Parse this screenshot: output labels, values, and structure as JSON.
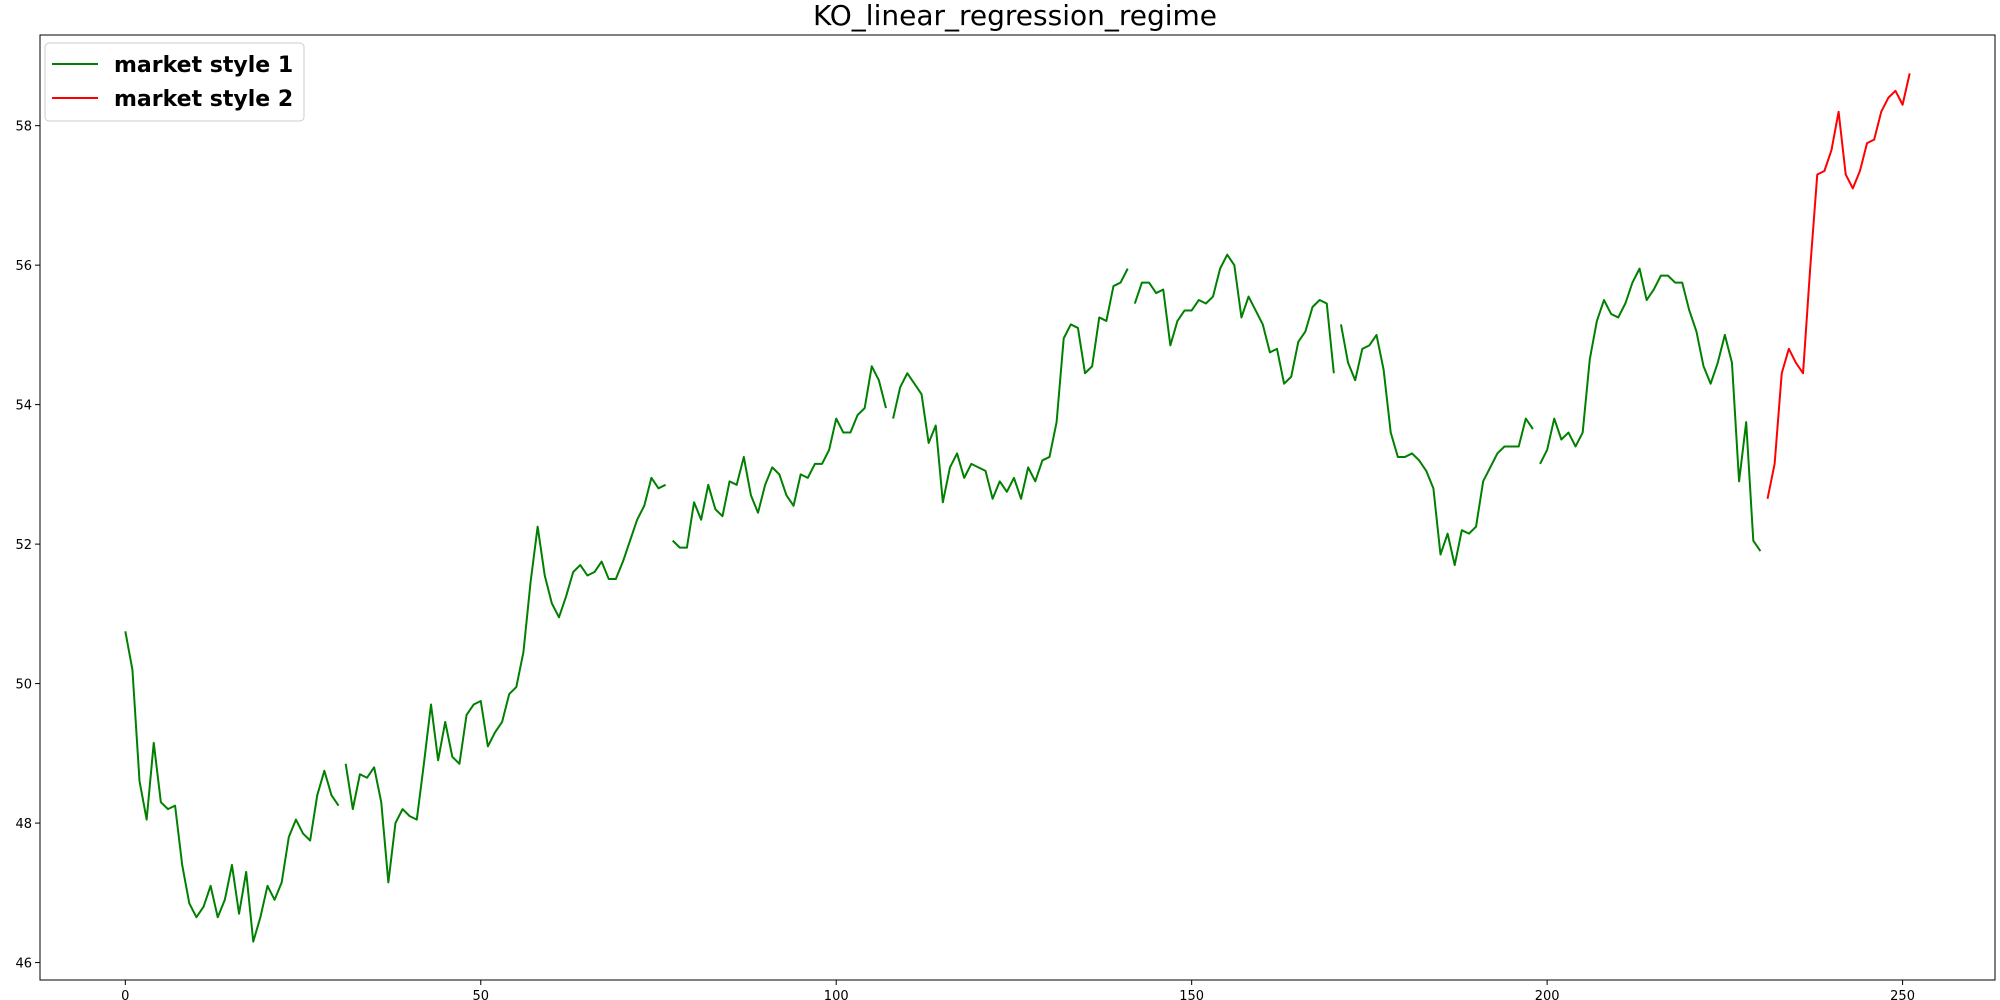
{
  "chart_data": {
    "type": "line",
    "title": "KO_linear_regression_regime",
    "xlabel": "",
    "ylabel": "",
    "xlim": [
      -12,
      263
    ],
    "ylim": [
      45.75,
      59.3
    ],
    "x_ticks": [
      0,
      50,
      100,
      150,
      200,
      250
    ],
    "y_ticks": [
      46,
      48,
      50,
      52,
      54,
      56,
      58
    ],
    "grid": false,
    "legend_position": "top-left",
    "colors": {
      "market style 1": "#008000",
      "market style 2": "#ff0000"
    },
    "series": [
      {
        "name": "market style 1",
        "color": "#008000",
        "segments": [
          [
            [
              0,
              50.75
            ],
            [
              1,
              50.2
            ],
            [
              2,
              48.6
            ],
            [
              3,
              48.05
            ],
            [
              4,
              49.15
            ],
            [
              5,
              48.3
            ],
            [
              6,
              48.2
            ],
            [
              7,
              48.25
            ],
            [
              8,
              47.4
            ],
            [
              9,
              46.85
            ],
            [
              10,
              46.65
            ],
            [
              11,
              46.8
            ],
            [
              12,
              47.1
            ],
            [
              13,
              46.65
            ],
            [
              14,
              46.9
            ],
            [
              15,
              47.4
            ],
            [
              16,
              46.7
            ],
            [
              17,
              47.3
            ],
            [
              18,
              46.3
            ],
            [
              19,
              46.65
            ],
            [
              20,
              47.1
            ],
            [
              21,
              46.9
            ],
            [
              22,
              47.15
            ],
            [
              23,
              47.8
            ],
            [
              24,
              48.05
            ],
            [
              25,
              47.85
            ],
            [
              26,
              47.75
            ],
            [
              27,
              48.4
            ],
            [
              28,
              48.75
            ],
            [
              29,
              48.4
            ],
            [
              30,
              48.25
            ]
          ],
          [
            [
              31,
              48.85
            ],
            [
              32,
              48.2
            ],
            [
              33,
              48.7
            ],
            [
              34,
              48.65
            ],
            [
              35,
              48.8
            ],
            [
              36,
              48.3
            ],
            [
              37,
              47.15
            ],
            [
              38,
              48.0
            ],
            [
              39,
              48.2
            ],
            [
              40,
              48.1
            ],
            [
              41,
              48.05
            ],
            [
              42,
              48.85
            ],
            [
              43,
              49.7
            ],
            [
              44,
              48.9
            ],
            [
              45,
              49.45
            ],
            [
              46,
              48.95
            ],
            [
              47,
              48.85
            ],
            [
              48,
              49.55
            ],
            [
              49,
              49.7
            ],
            [
              50,
              49.75
            ],
            [
              51,
              49.1
            ],
            [
              52,
              49.3
            ],
            [
              53,
              49.45
            ],
            [
              54,
              49.85
            ],
            [
              55,
              49.95
            ],
            [
              56,
              50.45
            ],
            [
              57,
              51.45
            ],
            [
              58,
              52.25
            ],
            [
              59,
              51.55
            ],
            [
              60,
              51.15
            ],
            [
              61,
              50.95
            ],
            [
              62,
              51.25
            ],
            [
              63,
              51.6
            ],
            [
              64,
              51.7
            ],
            [
              65,
              51.55
            ],
            [
              66,
              51.6
            ],
            [
              67,
              51.75
            ],
            [
              68,
              51.5
            ],
            [
              69,
              51.5
            ],
            [
              70,
              51.75
            ],
            [
              71,
              52.05
            ],
            [
              72,
              52.35
            ],
            [
              73,
              52.55
            ],
            [
              74,
              52.95
            ],
            [
              75,
              52.8
            ],
            [
              76,
              52.85
            ]
          ],
          [
            [
              77,
              52.05
            ],
            [
              78,
              51.95
            ],
            [
              79,
              51.95
            ],
            [
              80,
              52.6
            ],
            [
              81,
              52.35
            ],
            [
              82,
              52.85
            ],
            [
              83,
              52.5
            ],
            [
              84,
              52.4
            ],
            [
              85,
              52.9
            ],
            [
              86,
              52.85
            ],
            [
              87,
              53.25
            ],
            [
              88,
              52.7
            ],
            [
              89,
              52.45
            ],
            [
              90,
              52.85
            ],
            [
              91,
              53.1
            ],
            [
              92,
              53.0
            ],
            [
              93,
              52.7
            ],
            [
              94,
              52.55
            ],
            [
              95,
              53.0
            ],
            [
              96,
              52.95
            ],
            [
              97,
              53.15
            ],
            [
              98,
              53.15
            ],
            [
              99,
              53.35
            ],
            [
              100,
              53.8
            ],
            [
              101,
              53.6
            ],
            [
              102,
              53.6
            ],
            [
              103,
              53.85
            ],
            [
              104,
              53.95
            ],
            [
              105,
              54.55
            ],
            [
              106,
              54.35
            ],
            [
              107,
              53.95
            ]
          ],
          [
            [
              108,
              53.8
            ],
            [
              109,
              54.25
            ],
            [
              110,
              54.45
            ],
            [
              111,
              54.3
            ],
            [
              112,
              54.15
            ],
            [
              113,
              53.45
            ],
            [
              114,
              53.7
            ],
            [
              115,
              52.6
            ],
            [
              116,
              53.1
            ],
            [
              117,
              53.3
            ],
            [
              118,
              52.95
            ],
            [
              119,
              53.15
            ],
            [
              120,
              53.1
            ],
            [
              121,
              53.05
            ],
            [
              122,
              52.65
            ],
            [
              123,
              52.9
            ],
            [
              124,
              52.75
            ],
            [
              125,
              52.95
            ],
            [
              126,
              52.65
            ],
            [
              127,
              53.1
            ],
            [
              128,
              52.9
            ],
            [
              129,
              53.2
            ],
            [
              130,
              53.25
            ],
            [
              131,
              53.75
            ],
            [
              132,
              54.95
            ],
            [
              133,
              55.15
            ],
            [
              134,
              55.1
            ],
            [
              135,
              54.45
            ],
            [
              136,
              54.55
            ],
            [
              137,
              55.25
            ],
            [
              138,
              55.2
            ],
            [
              139,
              55.7
            ],
            [
              140,
              55.75
            ],
            [
              141,
              55.95
            ]
          ],
          [
            [
              142,
              55.45
            ],
            [
              143,
              55.75
            ],
            [
              144,
              55.75
            ],
            [
              145,
              55.6
            ],
            [
              146,
              55.65
            ],
            [
              147,
              54.85
            ],
            [
              148,
              55.2
            ],
            [
              149,
              55.35
            ],
            [
              150,
              55.35
            ],
            [
              151,
              55.5
            ],
            [
              152,
              55.45
            ],
            [
              153,
              55.55
            ],
            [
              154,
              55.95
            ],
            [
              155,
              56.15
            ],
            [
              156,
              56.0
            ],
            [
              157,
              55.25
            ],
            [
              158,
              55.55
            ],
            [
              159,
              55.35
            ],
            [
              160,
              55.15
            ],
            [
              161,
              54.75
            ],
            [
              162,
              54.8
            ],
            [
              163,
              54.3
            ],
            [
              164,
              54.4
            ],
            [
              165,
              54.9
            ],
            [
              166,
              55.05
            ],
            [
              167,
              55.4
            ],
            [
              168,
              55.5
            ],
            [
              169,
              55.45
            ],
            [
              170,
              54.45
            ]
          ],
          [
            [
              171,
              55.15
            ],
            [
              172,
              54.6
            ],
            [
              173,
              54.35
            ],
            [
              174,
              54.8
            ],
            [
              175,
              54.85
            ],
            [
              176,
              55.0
            ],
            [
              177,
              54.5
            ],
            [
              178,
              53.6
            ],
            [
              179,
              53.25
            ],
            [
              180,
              53.25
            ],
            [
              181,
              53.3
            ],
            [
              182,
              53.2
            ],
            [
              183,
              53.05
            ],
            [
              184,
              52.8
            ],
            [
              185,
              51.85
            ],
            [
              186,
              52.15
            ],
            [
              187,
              51.7
            ],
            [
              188,
              52.2
            ],
            [
              189,
              52.15
            ],
            [
              190,
              52.25
            ],
            [
              191,
              52.9
            ],
            [
              192,
              53.1
            ],
            [
              193,
              53.3
            ],
            [
              194,
              53.4
            ],
            [
              195,
              53.4
            ],
            [
              196,
              53.4
            ],
            [
              197,
              53.8
            ],
            [
              198,
              53.65
            ]
          ],
          [
            [
              199,
              53.15
            ],
            [
              200,
              53.35
            ],
            [
              201,
              53.8
            ],
            [
              202,
              53.5
            ],
            [
              203,
              53.6
            ],
            [
              204,
              53.4
            ],
            [
              205,
              53.6
            ],
            [
              206,
              54.65
            ],
            [
              207,
              55.2
            ],
            [
              208,
              55.5
            ],
            [
              209,
              55.3
            ],
            [
              210,
              55.25
            ],
            [
              211,
              55.45
            ],
            [
              212,
              55.75
            ],
            [
              213,
              55.95
            ],
            [
              214,
              55.5
            ],
            [
              215,
              55.65
            ],
            [
              216,
              55.85
            ],
            [
              217,
              55.85
            ],
            [
              218,
              55.75
            ],
            [
              219,
              55.75
            ],
            [
              220,
              55.35
            ],
            [
              221,
              55.05
            ],
            [
              222,
              54.55
            ],
            [
              223,
              54.3
            ],
            [
              224,
              54.6
            ],
            [
              225,
              55.0
            ],
            [
              226,
              54.6
            ],
            [
              227,
              52.9
            ],
            [
              228,
              53.75
            ],
            [
              229,
              52.05
            ],
            [
              230,
              51.9
            ]
          ]
        ]
      },
      {
        "name": "market style 2",
        "color": "#ff0000",
        "segments": [
          [
            [
              231,
              52.65
            ],
            [
              232,
              53.15
            ],
            [
              233,
              54.45
            ],
            [
              234,
              54.8
            ],
            [
              235,
              54.6
            ],
            [
              236,
              54.45
            ],
            [
              237,
              55.95
            ],
            [
              238,
              57.3
            ],
            [
              239,
              57.35
            ],
            [
              240,
              57.65
            ],
            [
              241,
              58.2
            ],
            [
              242,
              57.3
            ],
            [
              243,
              57.1
            ],
            [
              244,
              57.35
            ],
            [
              245,
              57.75
            ],
            [
              246,
              57.8
            ],
            [
              247,
              58.2
            ],
            [
              248,
              58.4
            ],
            [
              249,
              58.5
            ],
            [
              250,
              58.3
            ],
            [
              251,
              58.75
            ]
          ]
        ]
      }
    ]
  }
}
